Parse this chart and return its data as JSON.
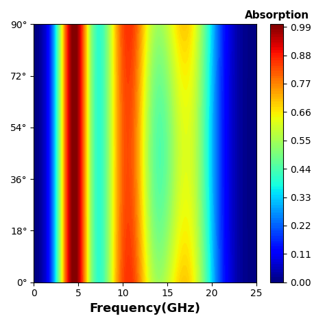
{
  "xlabel": "Frequency(GHz)",
  "ylabel": "",
  "x_min": 0,
  "x_max": 25,
  "y_min": 0,
  "y_max": 90,
  "x_ticks": [
    0,
    5,
    10,
    15,
    20,
    25
  ],
  "y_tick_values": [
    0,
    18,
    36,
    54,
    72,
    90
  ],
  "y_tick_labels": [
    "0°",
    "18°",
    "36°",
    "54°",
    "72°",
    "90°"
  ],
  "colormap": "jet",
  "xlabel_fontsize": 13,
  "xlabel_fontweight": "bold",
  "title_fontsize": 11,
  "title_fontweight": "bold"
}
